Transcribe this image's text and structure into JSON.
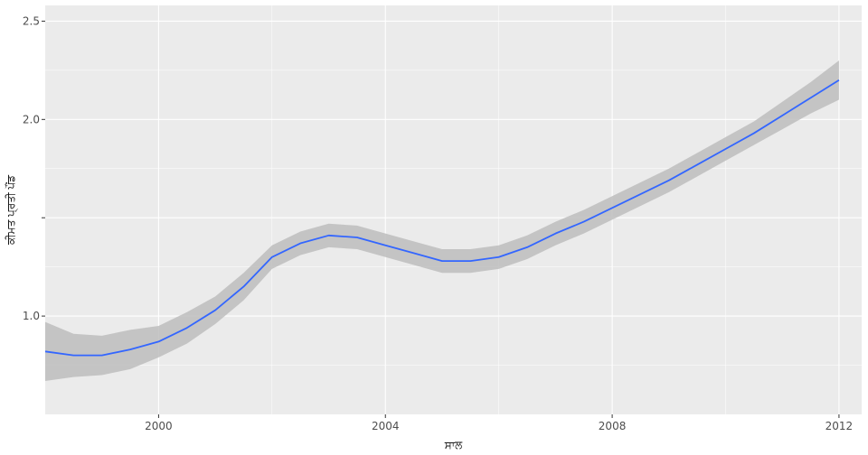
{
  "chart_data": {
    "type": "line",
    "title": "",
    "xlabel": "ਸਾਲ",
    "ylabel": "ਕੀਮਤ ਪ੍ਰਤੀ ਪੌਂਡ",
    "xlim": [
      1998,
      2012.4
    ],
    "ylim": [
      0.5,
      2.58
    ],
    "xticks": [
      2000,
      2004,
      2008,
      2012
    ],
    "yticks": [
      1.0,
      1.5,
      2.0,
      2.5
    ],
    "ytick_labels": [
      "1.0",
      "",
      "2.0",
      "2.5"
    ],
    "grid": true,
    "legend": "none",
    "colors": {
      "line": "#3366ff",
      "ribbon": "#bdbdbd",
      "panel": "#ebebeb",
      "grid": "#ffffff"
    },
    "series": [
      {
        "x": [
          1998,
          1998.5,
          1999,
          1999.5,
          2000,
          2000.5,
          2001,
          2001.5,
          2002,
          2002.5,
          2003,
          2003.5,
          2004,
          2004.5,
          2005,
          2005.5,
          2006,
          2006.5,
          2007,
          2007.5,
          2008,
          2008.5,
          2009,
          2009.5,
          2010,
          2010.5,
          2011,
          2011.5,
          2012
        ],
        "y": [
          0.82,
          0.8,
          0.8,
          0.83,
          0.87,
          0.94,
          1.03,
          1.15,
          1.3,
          1.37,
          1.41,
          1.4,
          1.36,
          1.32,
          1.28,
          1.28,
          1.3,
          1.35,
          1.42,
          1.48,
          1.55,
          1.62,
          1.69,
          1.77,
          1.85,
          1.93,
          2.02,
          2.11,
          2.2
        ],
        "lower": [
          0.67,
          0.69,
          0.7,
          0.73,
          0.79,
          0.86,
          0.96,
          1.08,
          1.24,
          1.31,
          1.35,
          1.34,
          1.3,
          1.26,
          1.22,
          1.22,
          1.24,
          1.29,
          1.36,
          1.42,
          1.49,
          1.56,
          1.63,
          1.71,
          1.79,
          1.87,
          1.95,
          2.03,
          2.1
        ],
        "upper": [
          0.97,
          0.91,
          0.9,
          0.93,
          0.95,
          1.02,
          1.1,
          1.22,
          1.36,
          1.43,
          1.47,
          1.46,
          1.42,
          1.38,
          1.34,
          1.34,
          1.36,
          1.41,
          1.48,
          1.54,
          1.61,
          1.68,
          1.75,
          1.83,
          1.91,
          1.99,
          2.09,
          2.19,
          2.3
        ]
      }
    ]
  }
}
